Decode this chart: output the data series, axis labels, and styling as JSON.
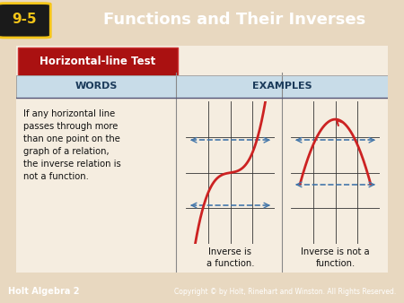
{
  "title_badge": "9-5",
  "title_text": "Functions and Their Inverses",
  "header_bg": "#29a8c8",
  "badge_bg": "#1a1a1a",
  "badge_text_color": "#f5c518",
  "title_text_color": "#ffffff",
  "box_label": "Horizontal-line Test",
  "box_label_bg": "#aa1111",
  "box_label_color": "#ffffff",
  "col1_header": "WORDS",
  "col2_header": "EXAMPLES",
  "col_header_bg": "#c8dce8",
  "col_header_color": "#1a3a5a",
  "words_text": "If any horizontal line\npasses through more\nthan one point on the\ngraph of a relation,\nthe inverse relation is\nnot a function.",
  "caption1": "Inverse is\na function.",
  "caption2": "Inverse is not a\nfunction.",
  "main_bg": "#e8d8c0",
  "card_bg": "#f5ede0",
  "footer_bg": "#29a8c8",
  "footer_left": "Holt Algebra 2",
  "footer_right": "Copyright © by Holt, Rinehart and Winston. All Rights Reserved.",
  "footer_text_color": "#ffffff",
  "curve_color": "#cc2222",
  "dashed_color": "#4477aa",
  "grid_color": "#333333"
}
